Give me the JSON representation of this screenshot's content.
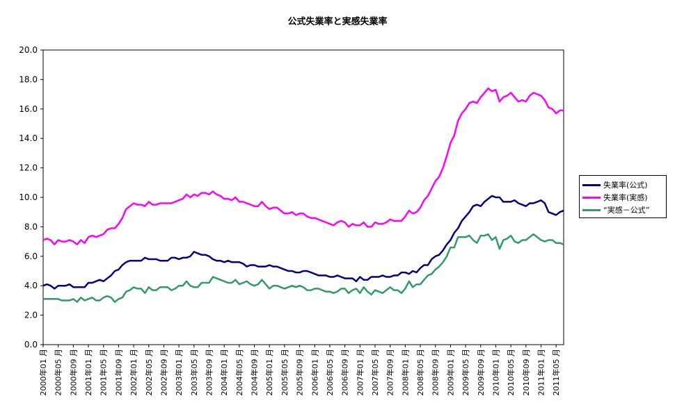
{
  "chart_data": {
    "type": "line",
    "title": "公式失業率と実感失業率",
    "xlabel": "",
    "ylabel": "",
    "ylim": [
      0,
      20
    ],
    "y_ticks": [
      "0.0",
      "2.0",
      "4.0",
      "6.0",
      "8.0",
      "10.0",
      "12.0",
      "14.0",
      "16.0",
      "18.0",
      "20.0"
    ],
    "grid": true,
    "legend_position": "right",
    "x_tick_labels": [
      "2000年01 月",
      "2000年05 月",
      "2000年09 月",
      "2001年01 月",
      "2001年05 月",
      "2001年09 月",
      "2002年01 月",
      "2002年05 月",
      "2002年09 月",
      "2003年01 月",
      "2003年05 月",
      "2003年09 月",
      "2004年01 月",
      "2004年05 月",
      "2004年09 月",
      "2005年01 月",
      "2005年05 月",
      "2005年09 月",
      "2006年01 月",
      "2006年05 月",
      "2006年09 月",
      "2007年01 月",
      "2007年05 月",
      "2007年09 月",
      "2008年01 月",
      "2008年05 月",
      "2008年09 月",
      "2009年01 月",
      "2009年05 月",
      "2009年09 月",
      "2010年01 月",
      "2010年05 月",
      "2010年09 月",
      "2011年01 月",
      "2011年05 月"
    ],
    "x_start": "2000-01",
    "x_end": "2011-05",
    "series": [
      {
        "name": "失業率(公式)",
        "color": "#000080",
        "values": [
          4.0,
          4.1,
          4.0,
          3.8,
          4.0,
          4.0,
          4.0,
          4.1,
          3.9,
          3.9,
          3.9,
          3.9,
          4.2,
          4.2,
          4.3,
          4.4,
          4.3,
          4.5,
          4.7,
          5.0,
          5.1,
          5.4,
          5.6,
          5.7,
          5.7,
          5.7,
          5.7,
          5.9,
          5.8,
          5.8,
          5.8,
          5.7,
          5.7,
          5.7,
          5.9,
          5.9,
          5.8,
          5.9,
          5.9,
          6.0,
          6.3,
          6.2,
          6.1,
          6.1,
          6.0,
          5.8,
          5.7,
          5.7,
          5.6,
          5.7,
          5.6,
          5.6,
          5.6,
          5.5,
          5.3,
          5.4,
          5.4,
          5.3,
          5.3,
          5.3,
          5.4,
          5.3,
          5.3,
          5.2,
          5.1,
          5.0,
          5.0,
          4.9,
          4.9,
          5.0,
          5.0,
          4.9,
          4.8,
          4.7,
          4.7,
          4.7,
          4.6,
          4.6,
          4.7,
          4.6,
          4.5,
          4.5,
          4.5,
          4.3,
          4.6,
          4.4,
          4.4,
          4.6,
          4.6,
          4.6,
          4.7,
          4.6,
          4.6,
          4.7,
          4.7,
          4.9,
          4.9,
          4.8,
          5.0,
          4.9,
          5.2,
          5.4,
          5.4,
          5.8,
          6.0,
          6.1,
          6.4,
          6.8,
          7.1,
          7.6,
          7.9,
          8.4,
          8.7,
          9.0,
          9.4,
          9.5,
          9.4,
          9.7,
          9.9,
          10.1,
          10.0,
          10.0,
          9.7,
          9.7,
          9.7,
          9.8,
          9.6,
          9.5,
          9.4,
          9.6,
          9.6,
          9.7,
          9.8,
          9.6,
          9.0,
          8.9,
          8.8,
          9.0,
          9.1
        ]
      },
      {
        "name": "失業率(実感)",
        "color": "#ff00ff",
        "values": [
          7.1,
          7.2,
          7.1,
          6.8,
          7.1,
          7.0,
          7.0,
          7.1,
          7.0,
          6.8,
          7.1,
          6.9,
          7.3,
          7.4,
          7.3,
          7.4,
          7.5,
          7.8,
          7.9,
          7.9,
          8.2,
          8.6,
          9.2,
          9.4,
          9.6,
          9.5,
          9.5,
          9.4,
          9.7,
          9.5,
          9.5,
          9.6,
          9.6,
          9.6,
          9.6,
          9.7,
          9.8,
          9.9,
          10.2,
          10.0,
          10.2,
          10.1,
          10.3,
          10.3,
          10.2,
          10.4,
          10.2,
          10.1,
          9.9,
          9.9,
          9.8,
          10.0,
          9.7,
          9.7,
          9.6,
          9.5,
          9.4,
          9.4,
          9.7,
          9.4,
          9.2,
          9.3,
          9.3,
          9.1,
          8.9,
          8.9,
          9.0,
          8.8,
          8.9,
          8.9,
          8.7,
          8.6,
          8.6,
          8.5,
          8.4,
          8.3,
          8.2,
          8.1,
          8.3,
          8.4,
          8.3,
          8.0,
          8.2,
          8.1,
          8.1,
          8.3,
          8.0,
          8.0,
          8.3,
          8.2,
          8.2,
          8.3,
          8.5,
          8.4,
          8.4,
          8.4,
          8.7,
          9.1,
          8.9,
          9.0,
          9.3,
          9.8,
          10.1,
          10.6,
          11.1,
          11.4,
          12.0,
          12.8,
          13.7,
          14.2,
          15.2,
          15.7,
          16.0,
          16.4,
          16.5,
          16.4,
          16.8,
          17.1,
          17.4,
          17.2,
          17.3,
          16.5,
          16.8,
          16.9,
          17.1,
          16.8,
          16.5,
          16.6,
          16.5,
          16.9,
          17.1,
          17.0,
          16.9,
          16.6,
          16.1,
          16.0,
          15.7,
          15.9,
          15.9
        ]
      },
      {
        "name": "“実感－公式”",
        "color": "#339966",
        "values": [
          3.1,
          3.1,
          3.1,
          3.1,
          3.1,
          3.0,
          3.0,
          3.0,
          3.1,
          2.9,
          3.2,
          3.0,
          3.1,
          3.2,
          3.0,
          3.0,
          3.2,
          3.3,
          3.2,
          2.9,
          3.1,
          3.2,
          3.6,
          3.7,
          3.9,
          3.8,
          3.8,
          3.5,
          3.9,
          3.7,
          3.7,
          3.9,
          3.9,
          3.9,
          3.7,
          3.8,
          4.0,
          4.0,
          4.3,
          4.0,
          3.9,
          3.9,
          4.2,
          4.2,
          4.2,
          4.6,
          4.5,
          4.4,
          4.3,
          4.2,
          4.2,
          4.4,
          4.1,
          4.2,
          4.3,
          4.1,
          4.0,
          4.1,
          4.4,
          4.1,
          3.8,
          4.0,
          4.0,
          3.9,
          3.8,
          3.9,
          4.0,
          3.9,
          4.0,
          3.9,
          3.7,
          3.7,
          3.8,
          3.8,
          3.7,
          3.6,
          3.6,
          3.5,
          3.6,
          3.8,
          3.8,
          3.5,
          3.7,
          3.8,
          3.5,
          3.9,
          3.6,
          3.4,
          3.7,
          3.6,
          3.5,
          3.7,
          3.9,
          3.7,
          3.7,
          3.5,
          3.8,
          4.3,
          3.9,
          4.1,
          4.1,
          4.4,
          4.7,
          4.8,
          5.1,
          5.3,
          5.6,
          6.0,
          6.6,
          6.6,
          7.3,
          7.3,
          7.3,
          7.4,
          7.1,
          6.9,
          7.4,
          7.4,
          7.5,
          7.1,
          7.3,
          6.5,
          7.1,
          7.2,
          7.4,
          7.0,
          6.9,
          7.1,
          7.1,
          7.3,
          7.5,
          7.3,
          7.1,
          7.0,
          7.1,
          7.1,
          6.9,
          6.9,
          6.8
        ]
      }
    ]
  }
}
